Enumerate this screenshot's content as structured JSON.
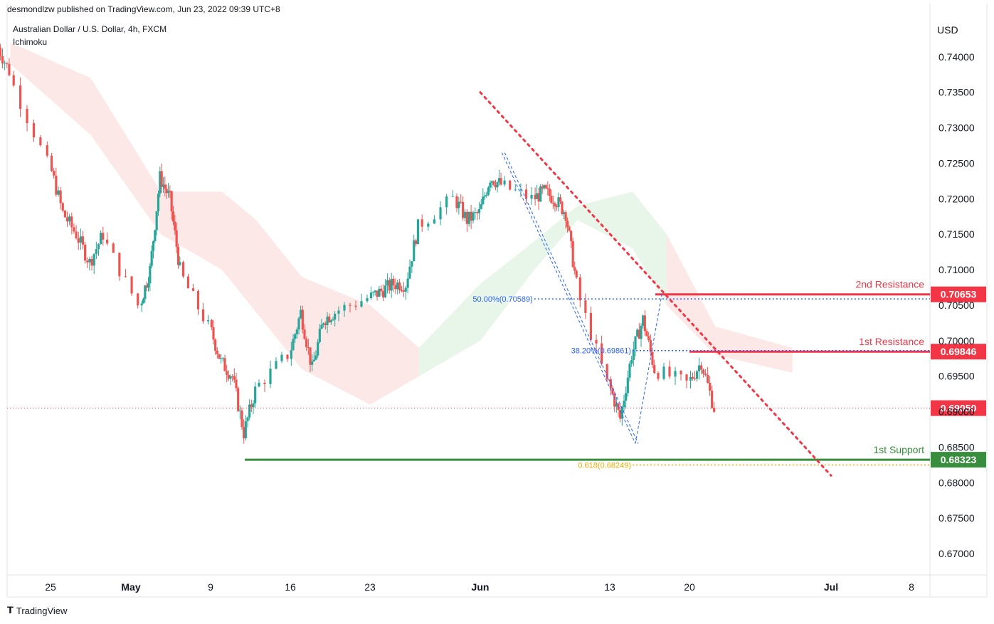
{
  "header": {
    "published": "desmondlzw published on TradingView.com, Jun 23, 2022 09:39 UTC+8",
    "symbol": "Australian Dollar / U.S. Dollar, 4h, FXCM",
    "indicator": "Ichimoku"
  },
  "footer": {
    "brand": "TradingView",
    "logo_icon": "tradingview-logo-icon"
  },
  "colors": {
    "up": "#26a69a",
    "down": "#ef5350",
    "resistance": "#f23645",
    "support": "#388e3c",
    "current": "#f23645",
    "fib": "#2962ff",
    "cloud_bull": "#e8f5e9",
    "cloud_bear": "#fde8e8"
  },
  "chart_data": {
    "type": "candlestick",
    "title": "Australian Dollar / U.S. Dollar, 4h, FXCM",
    "ylabel": "USD",
    "ylim": [
      0.667,
      0.745
    ],
    "y_ticks": [
      "0.74000",
      "0.73500",
      "0.73000",
      "0.72500",
      "0.72000",
      "0.71500",
      "0.71000",
      "0.70500",
      "0.70000",
      "0.69500",
      "0.69000",
      "0.68500",
      "0.68000",
      "0.67500",
      "0.67000"
    ],
    "x_ticks": [
      "25",
      "May",
      "9",
      "16",
      "23",
      "Jun",
      "13",
      "20",
      "Jul",
      "8"
    ],
    "x_tick_dates": [
      "2022-04-25",
      "2022-05-01",
      "2022-05-09",
      "2022-05-16",
      "2022-05-23",
      "2022-06-01",
      "2022-06-13",
      "2022-06-20",
      "2022-07-01",
      "2022-07-08"
    ],
    "close_path": [
      [
        "2022-04-21",
        0.742
      ],
      [
        "2022-04-22",
        0.738
      ],
      [
        "2022-04-25",
        0.725
      ],
      [
        "2022-04-26",
        0.718
      ],
      [
        "2022-04-27",
        0.715
      ],
      [
        "2022-04-28",
        0.711
      ],
      [
        "2022-04-29",
        0.715
      ],
      [
        "2022-05-02",
        0.705
      ],
      [
        "2022-05-03",
        0.71
      ],
      [
        "2022-05-04",
        0.723
      ],
      [
        "2022-05-05",
        0.72
      ],
      [
        "2022-05-06",
        0.71
      ],
      [
        "2022-05-09",
        0.702
      ],
      [
        "2022-05-10",
        0.697
      ],
      [
        "2022-05-11",
        0.695
      ],
      [
        "2022-05-12",
        0.687
      ],
      [
        "2022-05-13",
        0.693
      ],
      [
        "2022-05-16",
        0.698
      ],
      [
        "2022-05-17",
        0.704
      ],
      [
        "2022-05-18",
        0.696
      ],
      [
        "2022-05-19",
        0.703
      ],
      [
        "2022-05-20",
        0.704
      ],
      [
        "2022-05-23",
        0.706
      ],
      [
        "2022-05-24",
        0.707
      ],
      [
        "2022-05-25",
        0.708
      ],
      [
        "2022-05-26",
        0.708
      ],
      [
        "2022-05-27",
        0.716
      ],
      [
        "2022-05-30",
        0.72
      ],
      [
        "2022-05-31",
        0.717
      ],
      [
        "2022-06-01",
        0.718
      ],
      [
        "2022-06-02",
        0.723
      ],
      [
        "2022-06-03",
        0.722
      ],
      [
        "2022-06-06",
        0.72
      ],
      [
        "2022-06-07",
        0.721
      ],
      [
        "2022-06-08",
        0.72
      ],
      [
        "2022-06-09",
        0.718
      ],
      [
        "2022-06-10",
        0.708
      ],
      [
        "2022-06-13",
        0.694
      ],
      [
        "2022-06-14",
        0.689
      ],
      [
        "2022-06-15",
        0.698
      ],
      [
        "2022-06-16",
        0.703
      ],
      [
        "2022-06-17",
        0.696
      ],
      [
        "2022-06-20",
        0.694
      ],
      [
        "2022-06-21",
        0.697
      ],
      [
        "2022-06-22",
        0.6905
      ]
    ],
    "ichimoku_cloud": {
      "upper": [
        [
          "2022-04-22",
          0.742
        ],
        [
          "2022-04-28",
          0.737
        ],
        [
          "2022-05-04",
          0.721
        ],
        [
          "2022-05-10",
          0.721
        ],
        [
          "2022-05-13",
          0.717
        ],
        [
          "2022-05-17",
          0.709
        ],
        [
          "2022-05-23",
          0.705
        ],
        [
          "2022-05-27",
          0.699
        ],
        [
          "2022-06-01",
          0.708
        ],
        [
          "2022-06-06",
          0.714
        ],
        [
          "2022-06-10",
          0.719
        ],
        [
          "2022-06-15",
          0.721
        ],
        [
          "2022-06-18",
          0.715
        ],
        [
          "2022-06-22",
          0.702
        ],
        [
          "2022-06-28",
          0.699
        ]
      ],
      "lower": [
        [
          "2022-04-22",
          0.739
        ],
        [
          "2022-04-28",
          0.729
        ],
        [
          "2022-05-04",
          0.715
        ],
        [
          "2022-05-10",
          0.71
        ],
        [
          "2022-05-13",
          0.704
        ],
        [
          "2022-05-17",
          0.696
        ],
        [
          "2022-05-23",
          0.691
        ],
        [
          "2022-05-27",
          0.695
        ],
        [
          "2022-06-01",
          0.7
        ],
        [
          "2022-06-06",
          0.71
        ],
        [
          "2022-06-10",
          0.717
        ],
        [
          "2022-06-15",
          0.713
        ],
        [
          "2022-06-18",
          0.705
        ],
        [
          "2022-06-22",
          0.698
        ],
        [
          "2022-06-28",
          0.6955
        ]
      ]
    },
    "levels": [
      {
        "name": "2nd Resistance",
        "value": "0.70653",
        "y": 0.70653,
        "from": "2022-06-17",
        "style": "red"
      },
      {
        "name": "1st Resistance",
        "value": "0.69846",
        "y": 0.69846,
        "from": "2022-06-20",
        "style": "red"
      },
      {
        "name": "1st Support",
        "value": "0.68323",
        "y": 0.68323,
        "from": "2022-05-12",
        "style": "green"
      }
    ],
    "current_price": {
      "value": "0.69050",
      "y": 0.6905
    },
    "fib_levels": [
      {
        "label": "50.00%(0.70589)",
        "y": 0.70589,
        "color": "#2962ff"
      },
      {
        "label": "38.20%(0.69861)",
        "y": 0.69861,
        "color": "#2962ff"
      },
      {
        "label": "0.618(0.68249)",
        "y": 0.68249,
        "color": "#f0a800"
      }
    ],
    "trendline": [
      [
        "2022-06-01",
        0.735
      ],
      [
        "2022-07-01",
        0.681
      ]
    ]
  }
}
